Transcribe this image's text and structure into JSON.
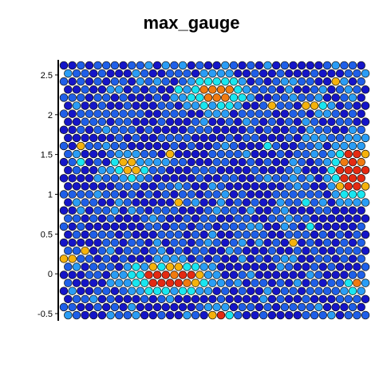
{
  "chart_data": {
    "type": "scatter",
    "title": "max_gauge",
    "xlabel": "",
    "ylabel": "",
    "ylim": [
      -0.57,
      2.68
    ],
    "y_ticks": [
      "-0.5",
      "0",
      "0.5",
      "1",
      "1.5",
      "2",
      "2.5"
    ],
    "y_tick_values": [
      -0.5,
      0,
      0.5,
      1,
      1.5,
      2,
      2.5
    ],
    "grid": false,
    "legend": "none",
    "colors": {
      "level0": "#1515c8",
      "level1": "#1f5fe8",
      "level2": "#2a9df5",
      "level3": "#19e6f0",
      "level4": "#f5b20c",
      "level5": "#f07a10",
      "level6": "#e42a12"
    },
    "hotspots": [
      {
        "name": "lower-left blob",
        "x": 0.345,
        "y": -0.05,
        "rx": 0.12,
        "ry": 0.16,
        "peak": 6
      },
      {
        "name": "top-center blob",
        "x": 0.505,
        "y": 2.28,
        "rx": 0.08,
        "ry": 0.18,
        "peak": 5
      },
      {
        "name": "right-middle blob",
        "x": 0.96,
        "y": 1.3,
        "rx": 0.06,
        "ry": 0.3,
        "peak": 6
      },
      {
        "name": "left-middle blob",
        "x": 0.22,
        "y": 1.35,
        "rx": 0.05,
        "ry": 0.12,
        "peak": 4
      },
      {
        "name": "upper-right small",
        "x": 0.85,
        "y": 2.1,
        "rx": 0.03,
        "ry": 0.08,
        "peak": 4
      },
      {
        "name": "lower-right small",
        "x": 0.96,
        "y": -0.15,
        "rx": 0.03,
        "ry": 0.06,
        "peak": 5
      },
      {
        "name": "bottom small",
        "x": 0.52,
        "y": -0.5,
        "rx": 0.03,
        "ry": 0.06,
        "peak": 6
      }
    ],
    "grid_spec": {
      "cols": 36,
      "rows": 32,
      "x_range": [
        0,
        1
      ],
      "y_range": [
        -0.52,
        2.62
      ],
      "seed": 7
    }
  }
}
